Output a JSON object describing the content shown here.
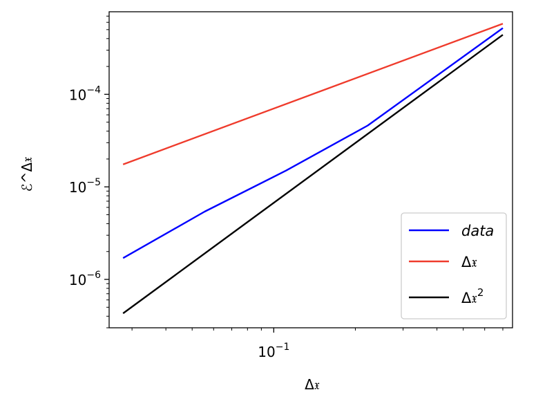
{
  "chart_data": {
    "type": "line",
    "xscale": "log",
    "yscale": "log",
    "xlim": [
      0.0247,
      0.76
    ],
    "ylim": [
      3e-07,
      0.00078
    ],
    "xlabel": "Δ𝔵",
    "ylabel": "ℰ^Δ𝔵",
    "grid": false,
    "legend_position": "lower-right",
    "xticks": [
      {
        "value": 0.1,
        "base": "10",
        "exp": "−1"
      }
    ],
    "yticks": [
      {
        "value": 1e-06,
        "base": "10",
        "exp": "−6"
      },
      {
        "value": 1e-05,
        "base": "10",
        "exp": "−5"
      },
      {
        "value": 0.0001,
        "base": "10",
        "exp": "−4"
      }
    ],
    "series": [
      {
        "name": "data",
        "color": "#0000ff",
        "italic": true,
        "x": [
          0.0278,
          0.0556,
          0.1111,
          0.2222,
          0.7
        ],
        "y": [
          1.7e-06,
          5.4e-06,
          1.5e-05,
          4.6e-05,
          0.00052
        ]
      },
      {
        "name": "Δ𝔵",
        "color": "#ef3b2c",
        "x": [
          0.0278,
          0.7
        ],
        "y": [
          1.75e-05,
          0.00058
        ]
      },
      {
        "name": "Δ𝔵",
        "superscript": "2",
        "color": "#000000",
        "x": [
          0.0278,
          0.7
        ],
        "y": [
          4.3e-07,
          0.00044
        ]
      }
    ]
  }
}
